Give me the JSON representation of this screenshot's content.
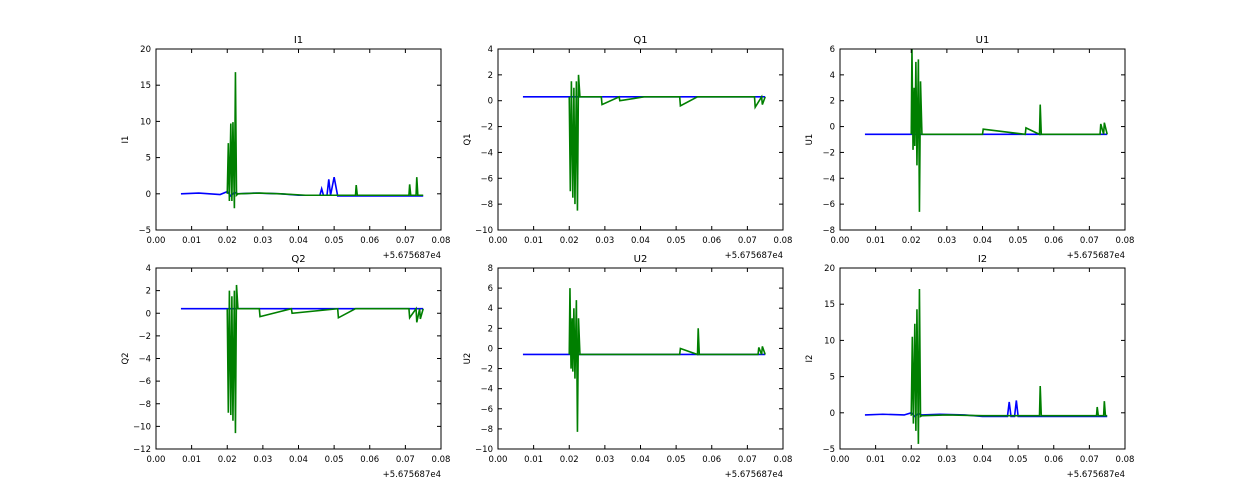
{
  "colors": {
    "series_a": "#0000ff",
    "series_b": "#007f00",
    "axes": "#000000",
    "background": "#ffffff"
  },
  "chart_data": [
    {
      "type": "line",
      "title": "I1",
      "xlabel": "",
      "ylabel": "I1",
      "xlim": [
        0.0,
        0.08
      ],
      "ylim": [
        -5,
        20
      ],
      "xticks": [
        "0.00",
        "0.01",
        "0.02",
        "0.03",
        "0.04",
        "0.05",
        "0.06",
        "0.07",
        "0.08"
      ],
      "yticks": [
        "−5",
        "0",
        "5",
        "10",
        "15",
        "20"
      ],
      "x_offset_label": "+5.675687e4",
      "series": [
        {
          "color": "#0000ff",
          "x": [
            0.007,
            0.012,
            0.018,
            0.02,
            0.021,
            0.022,
            0.023,
            0.028,
            0.035,
            0.04,
            0.046,
            0.0465,
            0.047,
            0.048,
            0.0485,
            0.049,
            0.05,
            0.0505,
            0.051,
            0.056,
            0.062,
            0.068,
            0.072,
            0.075
          ],
          "y": [
            0.0,
            0.1,
            -0.1,
            0.3,
            -0.3,
            0.2,
            0.0,
            0.1,
            0.0,
            -0.2,
            -0.2,
            0.7,
            -0.2,
            -0.2,
            2.0,
            -0.2,
            2.3,
            1.0,
            -0.3,
            -0.3,
            -0.3,
            -0.3,
            -0.3,
            -0.3
          ]
        },
        {
          "color": "#007f00",
          "x": [
            0.02,
            0.0203,
            0.0206,
            0.021,
            0.0213,
            0.0216,
            0.022,
            0.0223,
            0.0226,
            0.023,
            0.029,
            0.035,
            0.042,
            0.05,
            0.056,
            0.0562,
            0.0565,
            0.06,
            0.066,
            0.07,
            0.071,
            0.0712,
            0.0715,
            0.072,
            0.073,
            0.0732,
            0.0735,
            0.074,
            0.075
          ],
          "y": [
            0.0,
            7.0,
            -1.0,
            9.7,
            -1.0,
            9.9,
            -2.0,
            16.8,
            -0.2,
            0.0,
            0.1,
            0.0,
            -0.2,
            -0.2,
            -0.2,
            1.2,
            -0.2,
            -0.2,
            -0.2,
            -0.2,
            -0.2,
            1.3,
            -0.2,
            -0.2,
            -0.2,
            2.3,
            -0.2,
            -0.2,
            -0.2
          ]
        }
      ]
    },
    {
      "type": "line",
      "title": "Q1",
      "xlabel": "",
      "ylabel": "Q1",
      "xlim": [
        0.0,
        0.08
      ],
      "ylim": [
        -10,
        4
      ],
      "xticks": [
        "0.00",
        "0.01",
        "0.02",
        "0.03",
        "0.04",
        "0.05",
        "0.06",
        "0.07",
        "0.08"
      ],
      "yticks": [
        "−10",
        "−8",
        "−6",
        "−4",
        "−2",
        "0",
        "2",
        "4"
      ],
      "x_offset_label": "+5.675687e4",
      "series": [
        {
          "color": "#0000ff",
          "x": [
            0.007,
            0.015,
            0.025,
            0.035,
            0.045,
            0.055,
            0.065,
            0.075
          ],
          "y": [
            0.3,
            0.3,
            0.3,
            0.3,
            0.3,
            0.3,
            0.3,
            0.3
          ]
        },
        {
          "color": "#007f00",
          "x": [
            0.02,
            0.0203,
            0.0206,
            0.021,
            0.0213,
            0.0216,
            0.022,
            0.0223,
            0.0226,
            0.023,
            0.029,
            0.0292,
            0.034,
            0.0342,
            0.041,
            0.051,
            0.0512,
            0.056,
            0.066,
            0.072,
            0.0722,
            0.074,
            0.0742,
            0.075
          ],
          "y": [
            0.3,
            -7.0,
            1.5,
            -7.5,
            1.0,
            -8.0,
            1.5,
            -8.5,
            2.0,
            0.3,
            0.3,
            -0.3,
            0.3,
            0.0,
            0.3,
            0.3,
            -0.4,
            0.3,
            0.3,
            0.3,
            -0.5,
            0.3,
            -0.3,
            0.3
          ]
        }
      ]
    },
    {
      "type": "line",
      "title": "U1",
      "xlabel": "",
      "ylabel": "U1",
      "xlim": [
        0.0,
        0.08
      ],
      "ylim": [
        -8,
        6
      ],
      "xticks": [
        "0.00",
        "0.01",
        "0.02",
        "0.03",
        "0.04",
        "0.05",
        "0.06",
        "0.07",
        "0.08"
      ],
      "yticks": [
        "−8",
        "−6",
        "−4",
        "−2",
        "0",
        "2",
        "4",
        "6"
      ],
      "x_offset_label": "+5.675687e4",
      "series": [
        {
          "color": "#0000ff",
          "x": [
            0.007,
            0.015,
            0.025,
            0.035,
            0.045,
            0.055,
            0.065,
            0.075
          ],
          "y": [
            -0.6,
            -0.6,
            -0.6,
            -0.6,
            -0.6,
            -0.6,
            -0.6,
            -0.6
          ]
        },
        {
          "color": "#007f00",
          "x": [
            0.02,
            0.0202,
            0.0205,
            0.0208,
            0.021,
            0.0213,
            0.0216,
            0.022,
            0.0223,
            0.0226,
            0.023,
            0.04,
            0.0402,
            0.052,
            0.0522,
            0.056,
            0.0562,
            0.0565,
            0.066,
            0.073,
            0.0732,
            0.074,
            0.0742,
            0.075
          ],
          "y": [
            -0.6,
            6.0,
            -1.8,
            3.0,
            -1.5,
            5.0,
            -3.0,
            5.2,
            -6.6,
            3.5,
            -0.6,
            -0.6,
            -0.2,
            -0.6,
            -0.1,
            -0.6,
            1.7,
            -0.6,
            -0.6,
            -0.6,
            0.2,
            -0.6,
            0.3,
            -0.6
          ]
        }
      ]
    },
    {
      "type": "line",
      "title": "Q2",
      "xlabel": "",
      "ylabel": "Q2",
      "xlim": [
        0.0,
        0.08
      ],
      "ylim": [
        -12,
        4
      ],
      "xticks": [
        "0.00",
        "0.01",
        "0.02",
        "0.03",
        "0.04",
        "0.05",
        "0.06",
        "0.07",
        "0.08"
      ],
      "yticks": [
        "−12",
        "−10",
        "−8",
        "−6",
        "−4",
        "−2",
        "0",
        "2",
        "4"
      ],
      "x_offset_label": "+5.675687e4",
      "series": [
        {
          "color": "#0000ff",
          "x": [
            0.007,
            0.015,
            0.025,
            0.035,
            0.045,
            0.055,
            0.065,
            0.075
          ],
          "y": [
            0.4,
            0.4,
            0.4,
            0.4,
            0.4,
            0.4,
            0.4,
            0.4
          ]
        },
        {
          "color": "#007f00",
          "x": [
            0.02,
            0.0203,
            0.0206,
            0.021,
            0.0213,
            0.0216,
            0.022,
            0.0223,
            0.0226,
            0.023,
            0.029,
            0.0292,
            0.038,
            0.0382,
            0.051,
            0.0512,
            0.056,
            0.066,
            0.071,
            0.0712,
            0.073,
            0.0732,
            0.074,
            0.0742,
            0.075
          ],
          "y": [
            0.4,
            -8.8,
            2.0,
            -9.0,
            1.5,
            -9.5,
            2.0,
            -10.6,
            2.5,
            0.4,
            0.4,
            -0.3,
            0.4,
            0.0,
            0.4,
            -0.4,
            0.4,
            0.4,
            0.4,
            -0.4,
            0.4,
            -0.8,
            0.4,
            -0.5,
            0.4
          ]
        }
      ]
    },
    {
      "type": "line",
      "title": "U2",
      "xlabel": "",
      "ylabel": "U2",
      "xlim": [
        0.0,
        0.08
      ],
      "ylim": [
        -10,
        8
      ],
      "xticks": [
        "0.00",
        "0.01",
        "0.02",
        "0.03",
        "0.04",
        "0.05",
        "0.06",
        "0.07",
        "0.08"
      ],
      "yticks": [
        "−10",
        "−8",
        "−6",
        "−4",
        "−2",
        "0",
        "2",
        "4",
        "6",
        "8"
      ],
      "x_offset_label": "+5.675687e4",
      "series": [
        {
          "color": "#0000ff",
          "x": [
            0.007,
            0.015,
            0.025,
            0.035,
            0.045,
            0.055,
            0.065,
            0.075
          ],
          "y": [
            -0.6,
            -0.6,
            -0.6,
            -0.6,
            -0.6,
            -0.6,
            -0.6,
            -0.6
          ]
        },
        {
          "color": "#007f00",
          "x": [
            0.02,
            0.0202,
            0.0205,
            0.0208,
            0.021,
            0.0213,
            0.0216,
            0.022,
            0.0223,
            0.0226,
            0.023,
            0.051,
            0.0512,
            0.056,
            0.0562,
            0.0565,
            0.066,
            0.073,
            0.0732,
            0.074,
            0.0742,
            0.075
          ],
          "y": [
            -0.6,
            6.0,
            -2.0,
            3.0,
            -2.3,
            4.0,
            -3.0,
            4.8,
            -8.3,
            3.0,
            -0.6,
            -0.6,
            0.0,
            -0.6,
            2.0,
            -0.6,
            -0.6,
            -0.6,
            0.1,
            -0.6,
            0.2,
            -0.6
          ]
        }
      ]
    },
    {
      "type": "line",
      "title": "I2",
      "xlabel": "",
      "ylabel": "I2",
      "xlim": [
        0.0,
        0.08
      ],
      "ylim": [
        -5,
        20
      ],
      "xticks": [
        "0.00",
        "0.01",
        "0.02",
        "0.03",
        "0.04",
        "0.05",
        "0.06",
        "0.07",
        "0.08"
      ],
      "yticks": [
        "−5",
        "0",
        "5",
        "10",
        "15",
        "20"
      ],
      "x_offset_label": "+5.675687e4",
      "series": [
        {
          "color": "#0000ff",
          "x": [
            0.007,
            0.012,
            0.018,
            0.02,
            0.021,
            0.022,
            0.023,
            0.028,
            0.035,
            0.04,
            0.047,
            0.0475,
            0.048,
            0.049,
            0.0495,
            0.05,
            0.051,
            0.056,
            0.062,
            0.068,
            0.072,
            0.075
          ],
          "y": [
            -0.3,
            -0.2,
            -0.3,
            0.0,
            -0.5,
            -0.1,
            -0.3,
            -0.2,
            -0.3,
            -0.5,
            -0.5,
            1.5,
            -0.5,
            -0.5,
            1.7,
            -0.5,
            -0.5,
            -0.5,
            -0.5,
            -0.5,
            -0.5,
            -0.5
          ]
        },
        {
          "color": "#007f00",
          "x": [
            0.02,
            0.0203,
            0.0206,
            0.021,
            0.0213,
            0.0216,
            0.022,
            0.0223,
            0.0226,
            0.023,
            0.03,
            0.04,
            0.05,
            0.056,
            0.0562,
            0.0565,
            0.062,
            0.068,
            0.072,
            0.0722,
            0.0725,
            0.073,
            0.074,
            0.0742,
            0.0745,
            0.075
          ],
          "y": [
            -0.4,
            10.5,
            -1.5,
            12.3,
            -2.5,
            14.3,
            -4.3,
            17.1,
            -0.5,
            -0.4,
            -0.3,
            -0.4,
            -0.4,
            -0.4,
            3.7,
            -0.4,
            -0.4,
            -0.4,
            -0.4,
            0.8,
            -0.4,
            -0.4,
            -0.4,
            1.6,
            -0.4,
            -0.4
          ]
        }
      ]
    }
  ]
}
